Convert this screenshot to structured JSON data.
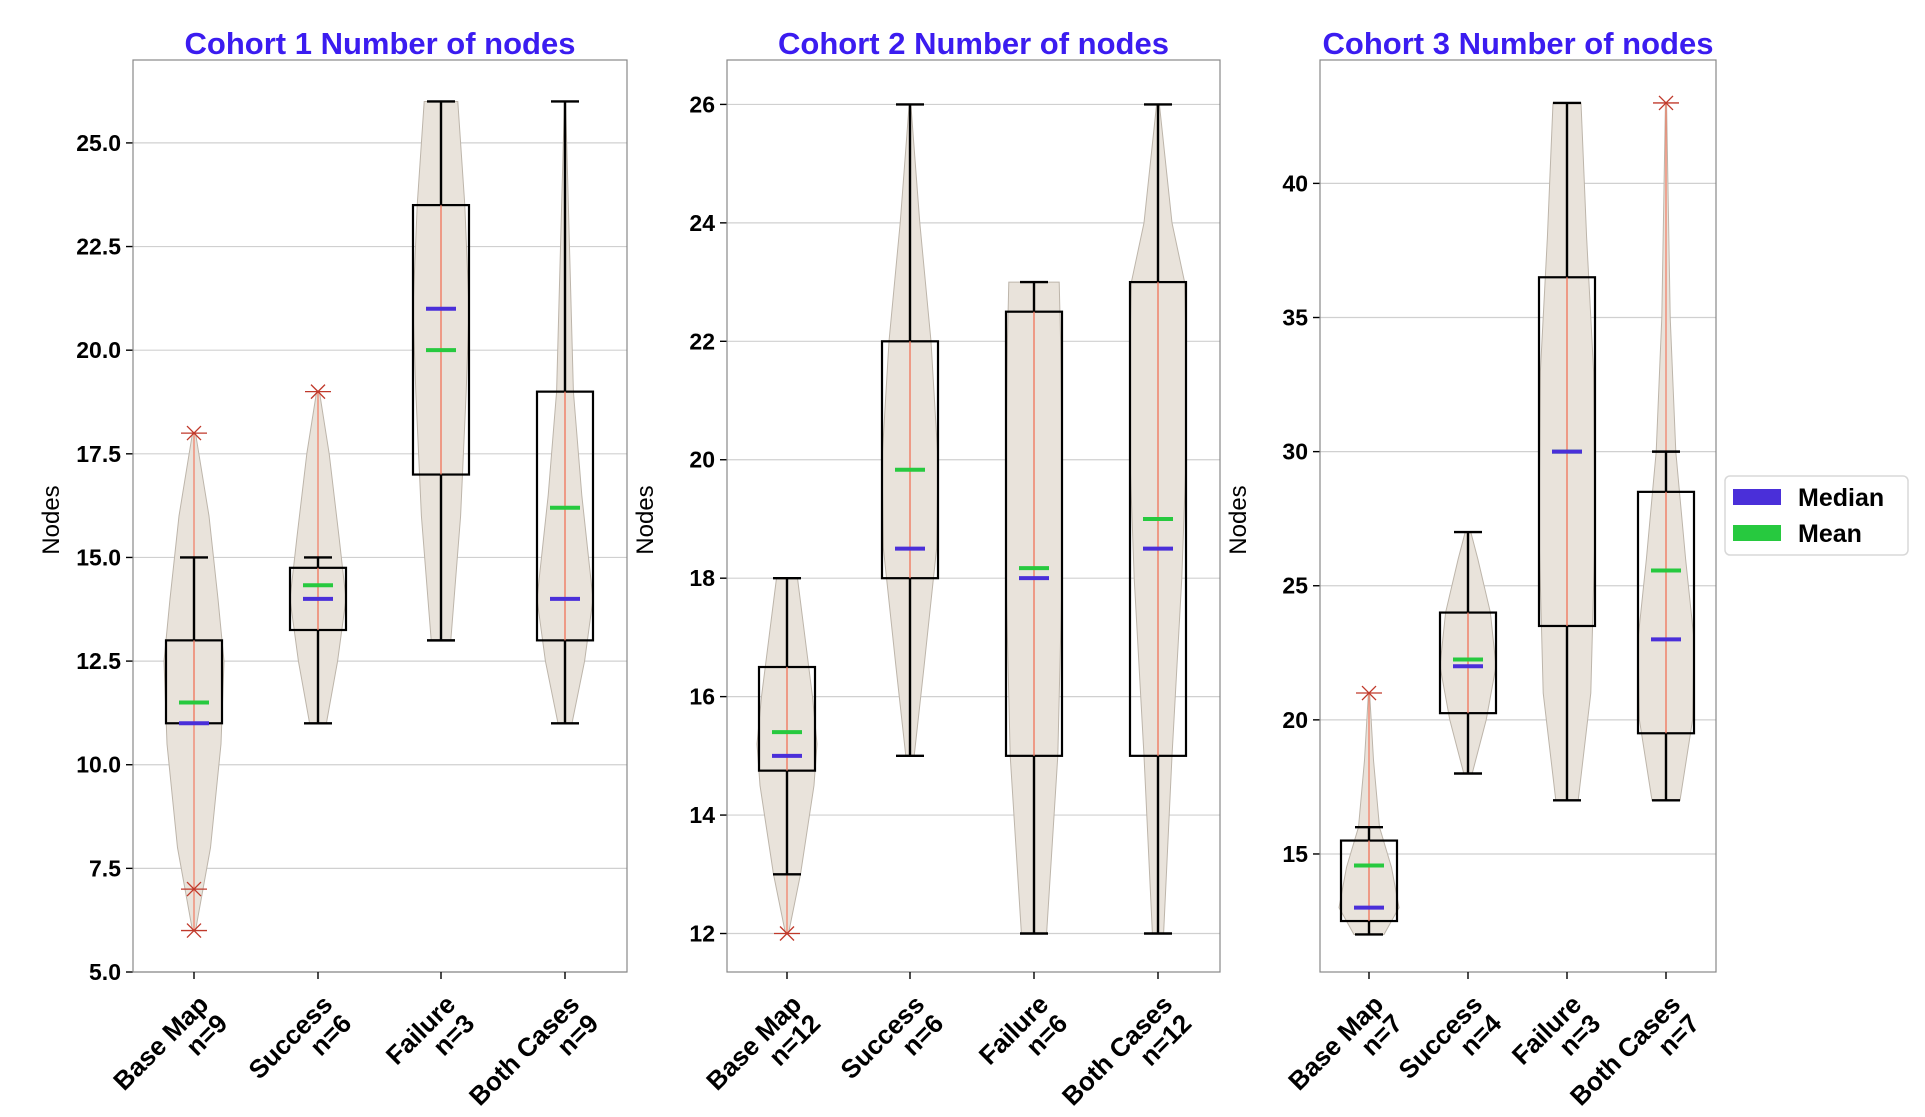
{
  "colors": {
    "title": "#3b1cf0",
    "violin": "#e9e3db",
    "violin_edge": "#bdb5aa",
    "box": "#000000",
    "whisker_line": "#f0836b",
    "marker": "#c0392b",
    "median": "#4a2fd9",
    "mean": "#27c93f",
    "grid": "#d0d0d0"
  },
  "legend": {
    "items": [
      {
        "label": "Median",
        "color": "#4a2fd9"
      },
      {
        "label": "Mean",
        "color": "#27c93f"
      }
    ]
  },
  "chart_data": [
    {
      "type": "box+violin",
      "title": "Cohort 1 Number of nodes",
      "ylabel": "Nodes",
      "ylim": [
        5.0,
        27.0
      ],
      "yticks": [
        5.0,
        7.5,
        10.0,
        12.5,
        15.0,
        17.5,
        20.0,
        22.5,
        25.0
      ],
      "ytick_labels": [
        "5.0",
        "7.5",
        "10.0",
        "12.5",
        "15.0",
        "17.5",
        "20.0",
        "22.5",
        "25.0"
      ],
      "categories": [
        {
          "label": "Base Map",
          "n": "n=9",
          "violin_min": 6,
          "violin_max": 18,
          "whisker_low": 11,
          "whisker_high": 15,
          "q1": 11,
          "q3": 13,
          "median": 11,
          "mean": 11.5,
          "markers": [
            6,
            7,
            18
          ]
        },
        {
          "label": "Success",
          "n": "n=6",
          "violin_min": 11,
          "violin_max": 19,
          "whisker_low": 11,
          "whisker_high": 15,
          "q1": 13.25,
          "q3": 14.75,
          "median": 14,
          "mean": 14.33,
          "markers": [
            19
          ]
        },
        {
          "label": "Failure",
          "n": "n=3",
          "violin_min": 13,
          "violin_max": 26,
          "whisker_low": 13,
          "whisker_high": 26,
          "q1": 17,
          "q3": 23.5,
          "median": 21,
          "mean": 20,
          "markers": []
        },
        {
          "label": "Both Cases",
          "n": "n=9",
          "violin_min": 11,
          "violin_max": 26,
          "whisker_low": 11,
          "whisker_high": 26,
          "q1": 13,
          "q3": 19,
          "median": 14,
          "mean": 16.2,
          "markers": []
        }
      ]
    },
    {
      "type": "box+violin",
      "title": "Cohort 2 Number of nodes",
      "ylabel": "Nodes",
      "ylim": [
        11.35,
        26.75
      ],
      "yticks": [
        12,
        14,
        16,
        18,
        20,
        22,
        24,
        26
      ],
      "ytick_labels": [
        "12",
        "14",
        "16",
        "18",
        "20",
        "22",
        "24",
        "26"
      ],
      "categories": [
        {
          "label": "Base Map",
          "n": "n=12",
          "violin_min": 12,
          "violin_max": 18,
          "whisker_low": 13,
          "whisker_high": 18,
          "q1": 14.75,
          "q3": 16.5,
          "median": 15,
          "mean": 15.4,
          "markers": [
            12
          ]
        },
        {
          "label": "Success",
          "n": "n=6",
          "violin_min": 15,
          "violin_max": 26,
          "whisker_low": 15,
          "whisker_high": 26,
          "q1": 18,
          "q3": 22,
          "median": 18.5,
          "mean": 19.83,
          "markers": []
        },
        {
          "label": "Failure",
          "n": "n=6",
          "violin_min": 12,
          "violin_max": 23,
          "whisker_low": 12,
          "whisker_high": 23,
          "q1": 15,
          "q3": 22.5,
          "median": 18,
          "mean": 18.17,
          "markers": []
        },
        {
          "label": "Both Cases",
          "n": "n=12",
          "violin_min": 12,
          "violin_max": 26,
          "whisker_low": 12,
          "whisker_high": 26,
          "q1": 15,
          "q3": 23,
          "median": 18.5,
          "mean": 19,
          "markers": []
        }
      ]
    },
    {
      "type": "box+violin",
      "title": "Cohort 3 Number of nodes",
      "ylabel": "Nodes",
      "ylim": [
        10.6,
        44.6
      ],
      "yticks": [
        15,
        20,
        25,
        30,
        35,
        40
      ],
      "ytick_labels": [
        "15",
        "20",
        "25",
        "30",
        "35",
        "40"
      ],
      "categories": [
        {
          "label": "Base Map",
          "n": "n=7",
          "violin_min": 12,
          "violin_max": 21,
          "whisker_low": 12,
          "whisker_high": 16,
          "q1": 12.5,
          "q3": 15.5,
          "median": 13,
          "mean": 14.57,
          "markers": [
            21
          ]
        },
        {
          "label": "Success",
          "n": "n=4",
          "violin_min": 18,
          "violin_max": 27,
          "whisker_low": 18,
          "whisker_high": 27,
          "q1": 20.25,
          "q3": 24,
          "median": 22,
          "mean": 22.25,
          "markers": []
        },
        {
          "label": "Failure",
          "n": "n=3",
          "violin_min": 17,
          "violin_max": 43,
          "whisker_low": 17,
          "whisker_high": 43,
          "q1": 23.5,
          "q3": 36.5,
          "median": 30,
          "mean": 30,
          "markers": []
        },
        {
          "label": "Both Cases",
          "n": "n=7",
          "violin_min": 17,
          "violin_max": 43,
          "whisker_low": 17,
          "whisker_high": 30,
          "q1": 19.5,
          "q3": 28.5,
          "median": 23,
          "mean": 25.57,
          "markers": [
            43
          ]
        }
      ]
    }
  ]
}
